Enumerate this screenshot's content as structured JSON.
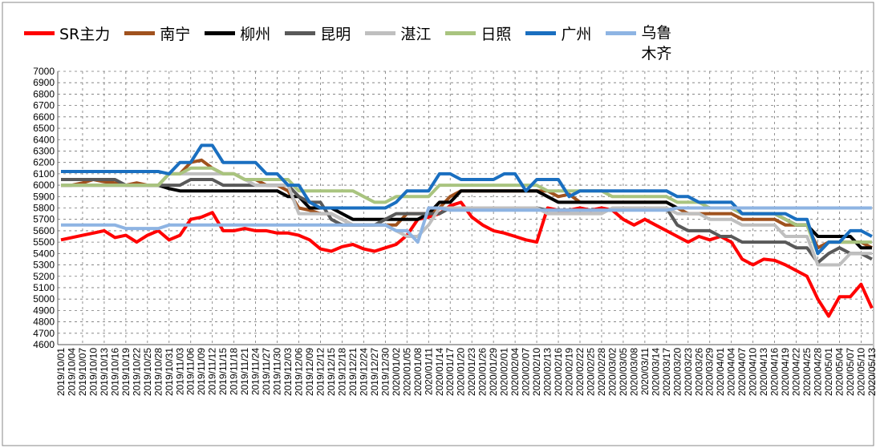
{
  "chart_data": {
    "type": "line",
    "categories": [
      "2019/10/01",
      "2019/10/04",
      "2019/10/07",
      "2019/10/10",
      "2019/10/13",
      "2019/10/16",
      "2019/10/19",
      "2019/10/22",
      "2019/10/25",
      "2019/10/28",
      "2019/10/31",
      "2019/11/03",
      "2019/11/06",
      "2019/11/09",
      "2019/11/12",
      "2019/11/15",
      "2019/11/18",
      "2019/11/21",
      "2019/11/24",
      "2019/11/27",
      "2019/11/30",
      "2019/12/03",
      "2019/12/06",
      "2019/12/09",
      "2019/12/12",
      "2019/12/15",
      "2019/12/18",
      "2019/12/21",
      "2019/12/24",
      "2019/12/27",
      "2019/12/30",
      "2020/01/02",
      "2020/01/05",
      "2020/01/08",
      "2020/01/11",
      "2020/01/14",
      "2020/01/17",
      "2020/01/20",
      "2020/01/23",
      "2020/01/26",
      "2020/01/29",
      "2020/02/01",
      "2020/02/04",
      "2020/02/07",
      "2020/02/10",
      "2020/02/13",
      "2020/02/16",
      "2020/02/19",
      "2020/02/22",
      "2020/02/25",
      "2020/02/28",
      "2020/03/02",
      "2020/03/05",
      "2020/03/08",
      "2020/03/11",
      "2020/03/14",
      "2020/03/17",
      "2020/03/20",
      "2020/03/23",
      "2020/03/26",
      "2020/03/29",
      "2020/04/01",
      "2020/04/04",
      "2020/04/07",
      "2020/04/10",
      "2020/04/13",
      "2020/04/16",
      "2020/04/19",
      "2020/04/22",
      "2020/04/25",
      "2020/04/28",
      "2020/05/01",
      "2020/05/04",
      "2020/05/07",
      "2020/05/10",
      "2020/05/13"
    ],
    "series": [
      {
        "name": "SR主力",
        "color": "#ff0000",
        "values": [
          5520,
          5540,
          5560,
          5580,
          5600,
          5540,
          5560,
          5500,
          5560,
          5600,
          5520,
          5560,
          5700,
          5720,
          5760,
          5600,
          5600,
          5620,
          5600,
          5600,
          5580,
          5580,
          5560,
          5520,
          5440,
          5420,
          5460,
          5480,
          5440,
          5420,
          5450,
          5480,
          5560,
          5700,
          5720,
          5750,
          5820,
          5850,
          5720,
          5650,
          5600,
          5580,
          5550,
          5520,
          5500,
          5800,
          5780,
          5780,
          5800,
          5780,
          5800,
          5780,
          5700,
          5650,
          5700,
          5650,
          5600,
          5550,
          5500,
          5550,
          5520,
          5550,
          5500,
          5350,
          5300,
          5350,
          5340,
          5300,
          5250,
          5200,
          5000,
          4850,
          5020,
          5020,
          5130,
          4920
        ]
      },
      {
        "name": "南宁",
        "color": "#a0521e",
        "values": [
          6000,
          6000,
          6020,
          6050,
          6030,
          6020,
          6000,
          6020,
          6000,
          6000,
          6100,
          6100,
          6200,
          6220,
          6150,
          6100,
          6100,
          6050,
          6050,
          6000,
          6000,
          5950,
          5800,
          5780,
          5750,
          5750,
          5700,
          5650,
          5650,
          5650,
          5650,
          5650,
          5750,
          5750,
          5750,
          5800,
          5900,
          5950,
          5950,
          5950,
          5950,
          5950,
          5950,
          5950,
          5950,
          5950,
          5900,
          5920,
          5850,
          5850,
          5850,
          5850,
          5850,
          5850,
          5850,
          5850,
          5850,
          5800,
          5750,
          5750,
          5750,
          5750,
          5750,
          5700,
          5700,
          5700,
          5700,
          5650,
          5650,
          5650,
          5450,
          5500,
          5500,
          5500,
          5500,
          5450
        ]
      },
      {
        "name": "柳州",
        "color": "#000000",
        "values": [
          6000,
          6000,
          6000,
          6000,
          6000,
          6000,
          6000,
          6000,
          6000,
          6000,
          5970,
          5950,
          5950,
          5950,
          5950,
          5950,
          5950,
          5950,
          5950,
          5950,
          5950,
          5900,
          5900,
          5800,
          5800,
          5800,
          5750,
          5700,
          5700,
          5700,
          5700,
          5700,
          5700,
          5700,
          5750,
          5850,
          5850,
          5950,
          5950,
          5950,
          5950,
          5950,
          5950,
          5950,
          5950,
          5900,
          5850,
          5850,
          5850,
          5850,
          5850,
          5850,
          5850,
          5850,
          5850,
          5850,
          5850,
          5800,
          5800,
          5800,
          5800,
          5800,
          5800,
          5750,
          5750,
          5750,
          5750,
          5700,
          5650,
          5650,
          5550,
          5550,
          5550,
          5550,
          5450,
          5450
        ]
      },
      {
        "name": "昆明",
        "color": "#595959",
        "values": [
          6050,
          6050,
          6050,
          6050,
          6050,
          6050,
          6000,
          6000,
          6000,
          6000,
          6000,
          6000,
          6050,
          6050,
          6050,
          6000,
          6000,
          6000,
          6000,
          6000,
          6000,
          6000,
          5900,
          5850,
          5850,
          5700,
          5650,
          5650,
          5650,
          5650,
          5700,
          5750,
          5750,
          5750,
          5750,
          5750,
          5800,
          5800,
          5800,
          5800,
          5800,
          5800,
          5800,
          5800,
          5800,
          5780,
          5780,
          5780,
          5780,
          5780,
          5780,
          5780,
          5780,
          5800,
          5800,
          5800,
          5800,
          5650,
          5600,
          5600,
          5600,
          5550,
          5550,
          5500,
          5500,
          5500,
          5500,
          5500,
          5450,
          5450,
          5320,
          5400,
          5450,
          5400,
          5400,
          5350
        ]
      },
      {
        "name": "湛江",
        "color": "#bfbfbf",
        "values": [
          6000,
          6000,
          6000,
          6000,
          6000,
          6000,
          6000,
          6000,
          6000,
          6000,
          6100,
          6100,
          6100,
          6100,
          6100,
          6100,
          6100,
          6050,
          6000,
          6000,
          6000,
          6000,
          5750,
          5750,
          5750,
          5750,
          5700,
          5650,
          5650,
          5650,
          5650,
          5600,
          5550,
          5550,
          5650,
          5800,
          5800,
          5800,
          5800,
          5800,
          5800,
          5800,
          5800,
          5800,
          5800,
          5750,
          5750,
          5750,
          5750,
          5750,
          5750,
          5800,
          5800,
          5800,
          5800,
          5800,
          5800,
          5750,
          5750,
          5750,
          5700,
          5700,
          5700,
          5650,
          5650,
          5650,
          5650,
          5550,
          5550,
          5550,
          5300,
          5300,
          5300,
          5400,
          5400,
          5400
        ]
      },
      {
        "name": "日照",
        "color": "#a9c47f",
        "values": [
          6000,
          6000,
          6000,
          6000,
          6000,
          6000,
          6000,
          6000,
          6000,
          6000,
          6100,
          6100,
          6150,
          6150,
          6150,
          6100,
          6100,
          6050,
          6050,
          6050,
          6050,
          6050,
          5950,
          5950,
          5950,
          5950,
          5950,
          5950,
          5900,
          5850,
          5850,
          5900,
          5900,
          5900,
          5900,
          6000,
          6000,
          6000,
          6000,
          6000,
          6000,
          6000,
          6000,
          6000,
          6000,
          5950,
          5950,
          5950,
          5950,
          5950,
          5950,
          5900,
          5900,
          5900,
          5900,
          5900,
          5900,
          5850,
          5850,
          5850,
          5800,
          5800,
          5800,
          5750,
          5750,
          5750,
          5750,
          5700,
          5650,
          5650,
          5400,
          5500,
          5500,
          5500,
          5500,
          5500
        ]
      },
      {
        "name": "广州",
        "color": "#1a6fc0",
        "values": [
          6120,
          6120,
          6120,
          6120,
          6120,
          6120,
          6120,
          6120,
          6120,
          6120,
          6100,
          6200,
          6200,
          6350,
          6350,
          6200,
          6200,
          6200,
          6200,
          6100,
          6100,
          6000,
          6000,
          5850,
          5800,
          5800,
          5800,
          5800,
          5800,
          5800,
          5800,
          5850,
          5950,
          5950,
          5950,
          6100,
          6100,
          6050,
          6050,
          6050,
          6050,
          6100,
          6100,
          5950,
          6050,
          6050,
          6050,
          5900,
          5950,
          5950,
          5950,
          5950,
          5950,
          5950,
          5950,
          5950,
          5950,
          5900,
          5900,
          5850,
          5850,
          5850,
          5850,
          5750,
          5750,
          5750,
          5750,
          5750,
          5700,
          5700,
          5400,
          5500,
          5500,
          5600,
          5600,
          5550
        ]
      },
      {
        "name": "乌鲁木齐",
        "color": "#8eb4e3",
        "values": [
          5650,
          5650,
          5650,
          5650,
          5650,
          5650,
          5620,
          5620,
          5620,
          5620,
          5650,
          5650,
          5650,
          5650,
          5650,
          5650,
          5650,
          5650,
          5650,
          5650,
          5650,
          5650,
          5650,
          5650,
          5650,
          5650,
          5650,
          5650,
          5650,
          5650,
          5650,
          5600,
          5600,
          5500,
          5800,
          5800,
          5780,
          5780,
          5780,
          5780,
          5780,
          5780,
          5780,
          5780,
          5780,
          5780,
          5780,
          5780,
          5780,
          5780,
          5780,
          5780,
          5780,
          5780,
          5780,
          5780,
          5780,
          5800,
          5800,
          5800,
          5800,
          5800,
          5800,
          5800,
          5800,
          5800,
          5800,
          5800,
          5800,
          5800,
          5800,
          5800,
          5800,
          5800,
          5800,
          5800
        ]
      }
    ],
    "ylim": [
      4600,
      7000
    ],
    "yticks": [
      4600,
      4700,
      4800,
      4900,
      5000,
      5100,
      5200,
      5300,
      5400,
      5500,
      5600,
      5700,
      5800,
      5900,
      6000,
      6100,
      6200,
      6300,
      6400,
      6500,
      6600,
      6700,
      6800,
      6900,
      7000
    ],
    "grid": true,
    "legend": "top"
  }
}
